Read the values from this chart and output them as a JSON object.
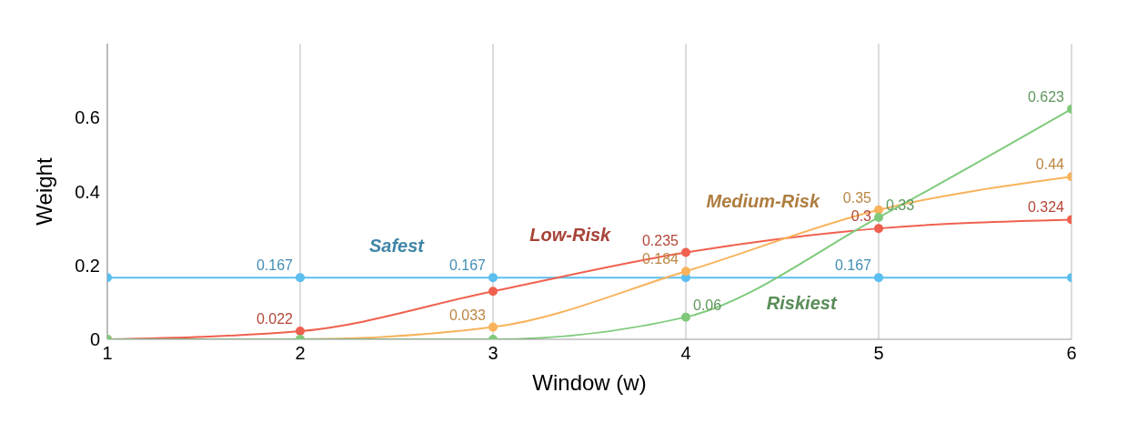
{
  "chart_data": {
    "type": "line",
    "xlabel": "Window (w)",
    "ylabel": "Weight",
    "x": [
      1,
      2,
      3,
      4,
      5,
      6
    ],
    "xlim": [
      1,
      6
    ],
    "xticks": [
      1,
      2,
      3,
      4,
      5,
      6
    ],
    "ylim": [
      0,
      0.8
    ],
    "yticks": [
      0,
      0.2,
      0.4,
      0.6
    ],
    "grid": "x",
    "marker": "circle",
    "line_style": "solid",
    "series": [
      {
        "name": "Safest",
        "color": "#5bbff0",
        "values": [
          0.167,
          0.167,
          0.167,
          0.167,
          0.167,
          0.167
        ],
        "value_labels": [
          null,
          "0.167",
          "0.167",
          null,
          "0.167",
          null
        ]
      },
      {
        "name": "Low-Risk",
        "color": "#f0604f",
        "values": [
          0,
          0.022,
          0.13,
          0.235,
          0.3,
          0.324
        ],
        "value_labels": [
          null,
          "0.022",
          null,
          "0.235",
          "0.3",
          "0.324"
        ]
      },
      {
        "name": "Medium-Risk",
        "color": "#f8b35c",
        "values": [
          0,
          0,
          0.033,
          0.184,
          0.35,
          0.44
        ],
        "value_labels": [
          null,
          null,
          "0.033",
          "0.184",
          "0.35",
          "0.44"
        ]
      },
      {
        "name": "Riskiest",
        "color": "#7fca7c",
        "values": [
          0,
          0,
          0,
          0.06,
          0.33,
          0.623
        ],
        "value_labels": [
          null,
          null,
          null,
          "0.06",
          "0.33",
          "0.623"
        ]
      }
    ]
  }
}
